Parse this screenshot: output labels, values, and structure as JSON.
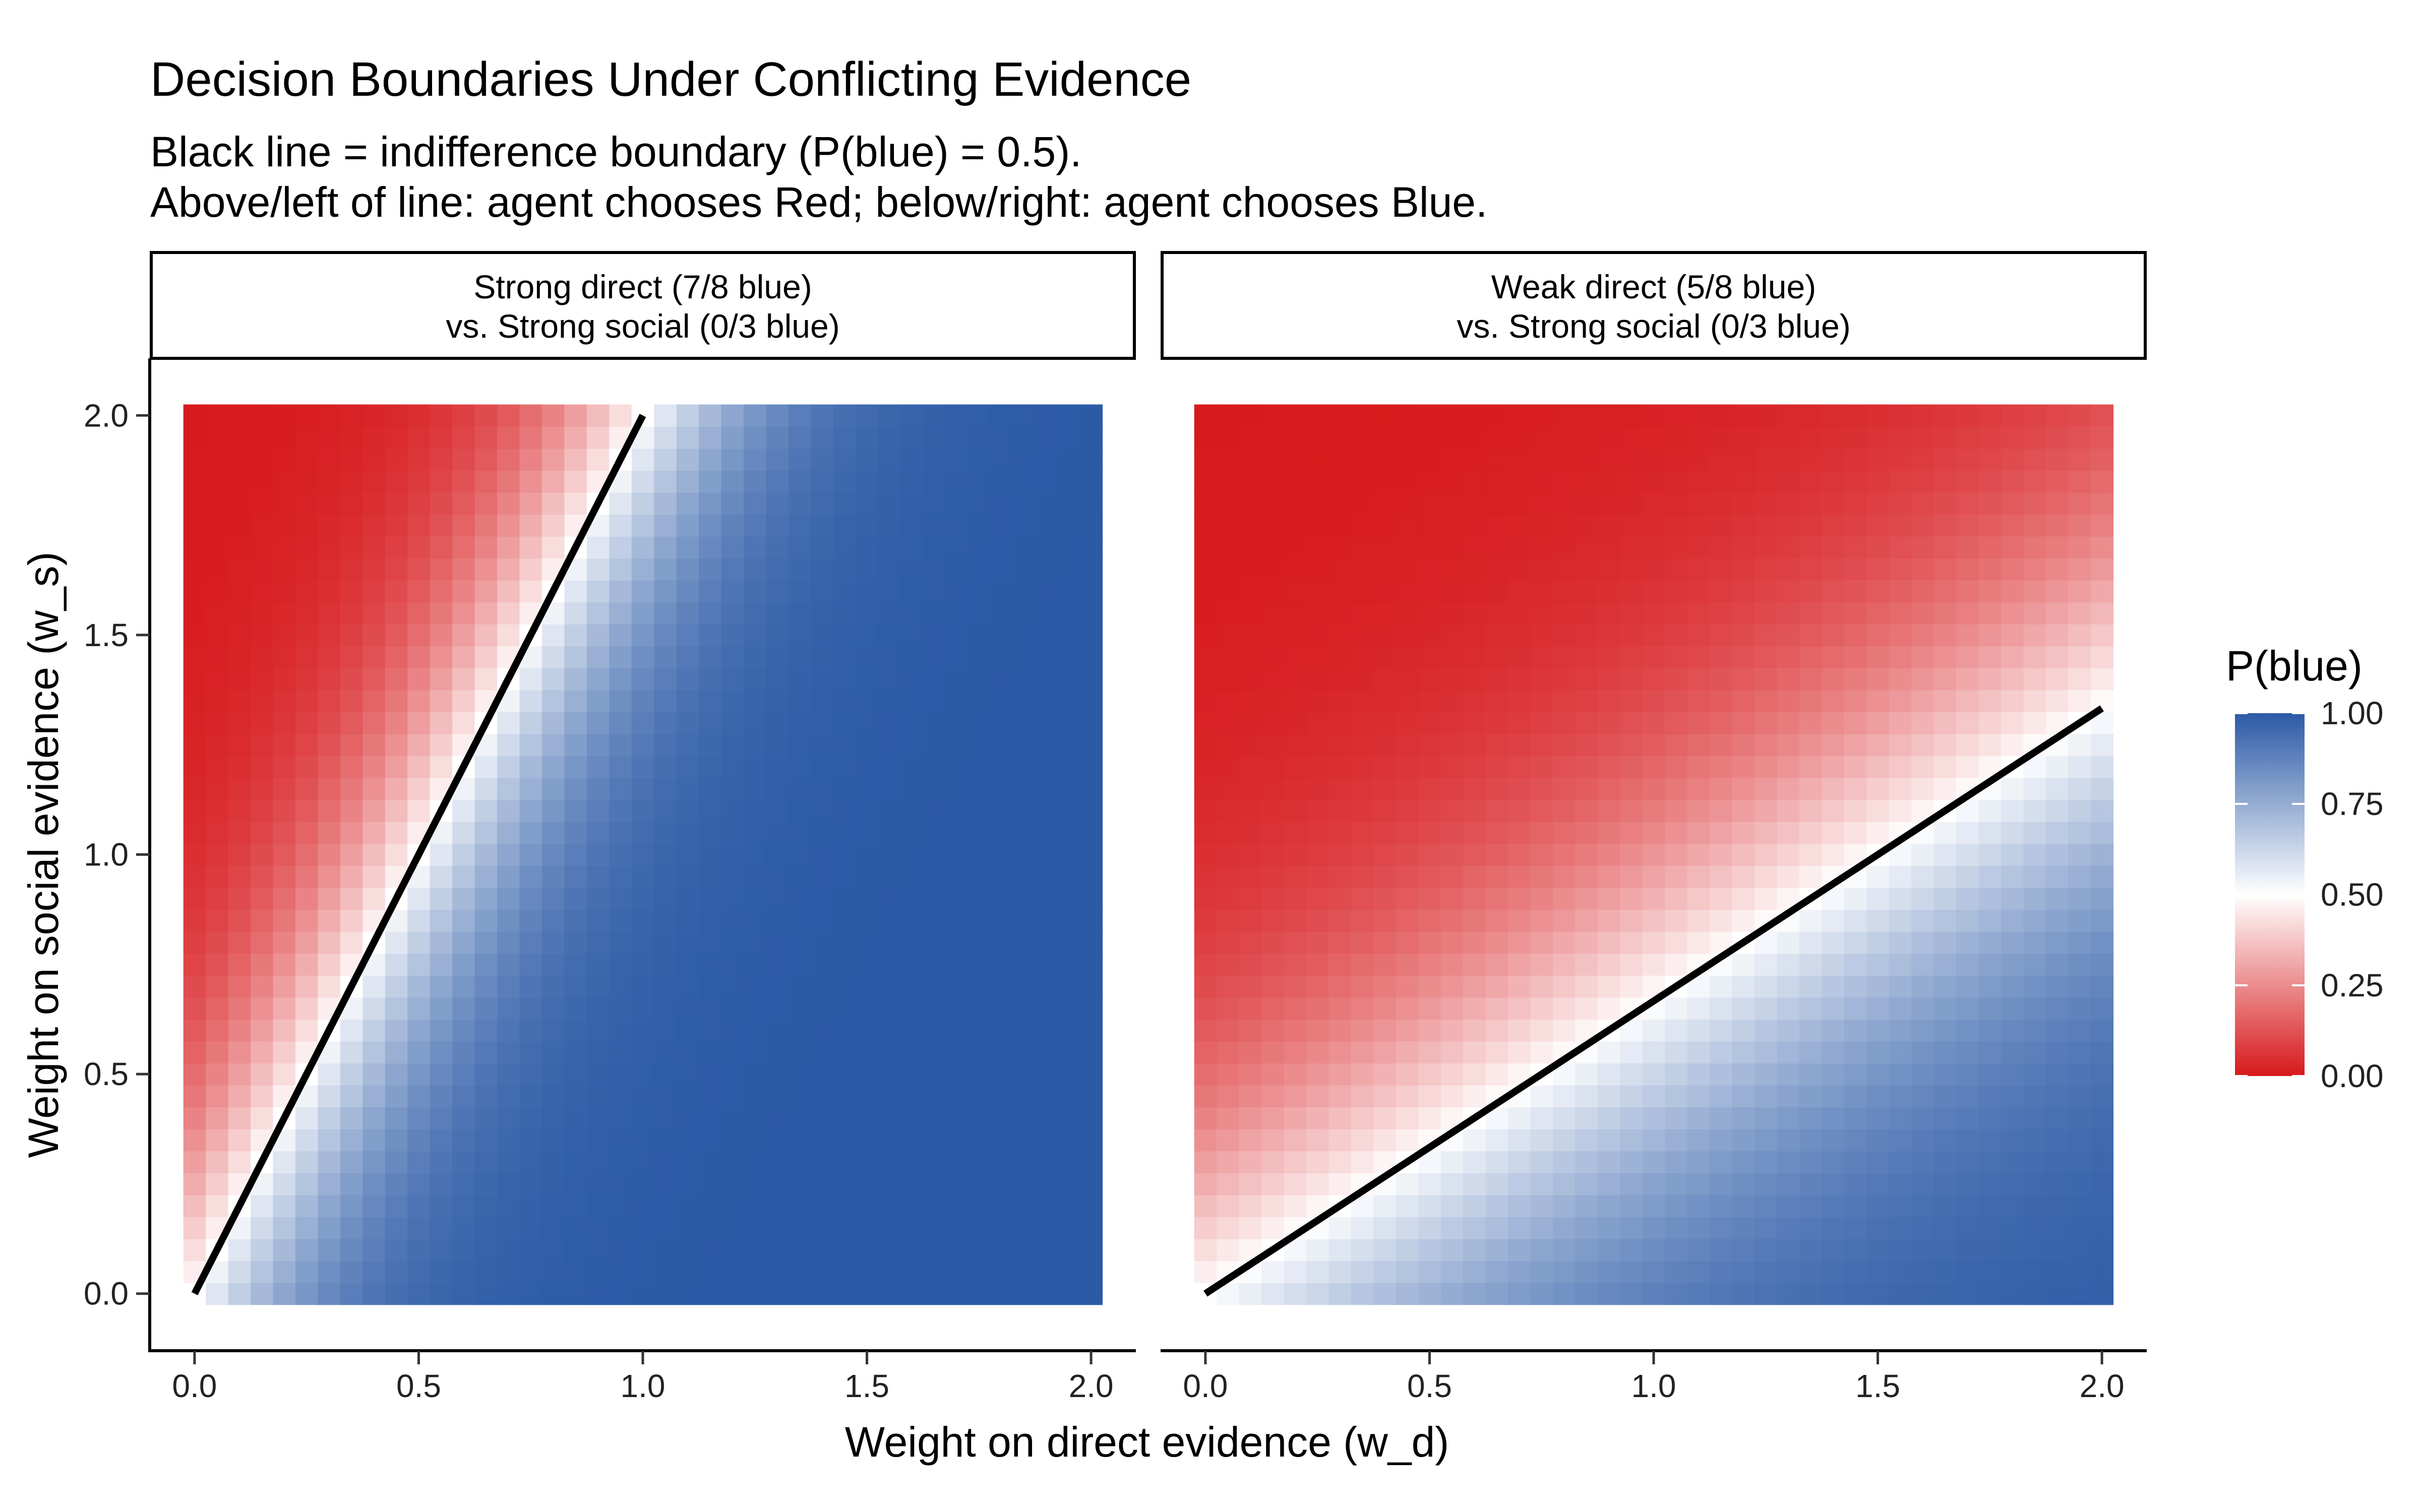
{
  "chart_data": {
    "type": "heatmap",
    "title": "Decision Boundaries Under Conflicting Evidence",
    "subtitle_lines": [
      "Black line = indifference boundary (P(blue) = 0.5).",
      "Above/left of line: agent chooses Red; below/right: agent chooses Blue."
    ],
    "xlabel": "Weight on direct evidence (w_d)",
    "ylabel": "Weight on social evidence (w_s)",
    "xlim": [
      -0.1,
      2.1
    ],
    "ylim": [
      -0.13,
      2.13
    ],
    "x_ticks": [
      0.0,
      0.5,
      1.0,
      1.5,
      2.0
    ],
    "x_tick_labels": [
      "0.0",
      "0.5",
      "1.0",
      "1.5",
      "2.0"
    ],
    "y_ticks": [
      0.0,
      0.5,
      1.0,
      1.5,
      2.0
    ],
    "y_tick_labels": [
      "0.0",
      "0.5",
      "1.0",
      "1.5",
      "2.0"
    ],
    "grid": false,
    "grid_range": [
      0,
      2
    ],
    "grid_step": 0.05,
    "legend": {
      "title": "P(blue)",
      "position": "right",
      "ticks": [
        0.0,
        0.25,
        0.5,
        0.75,
        1.0
      ],
      "tick_labels": [
        "0.00",
        "0.25",
        "0.50",
        "0.75",
        "1.00"
      ],
      "colors": {
        "low": "#d7191c",
        "mid": "#ffffff",
        "high": "#2b5aa6"
      }
    },
    "boundary_color": "#000000",
    "panels": [
      {
        "strip_lines": [
          "Strong direct (7/8 blue)",
          "vs. Strong social (0/3 blue)"
        ],
        "direct_blue": 7,
        "direct_total": 8,
        "social_blue": 0,
        "social_total": 3,
        "boundary": {
          "x": [
            0.0,
            1.0
          ],
          "y": [
            0.0,
            2.0
          ]
        }
      },
      {
        "strip_lines": [
          "Weak direct (5/8 blue)",
          "vs. Strong social (0/3 blue)"
        ],
        "direct_blue": 5,
        "direct_total": 8,
        "social_blue": 0,
        "social_total": 3,
        "boundary": {
          "x": [
            0.0,
            2.0
          ],
          "y": [
            0.0,
            1.333
          ]
        }
      }
    ]
  }
}
